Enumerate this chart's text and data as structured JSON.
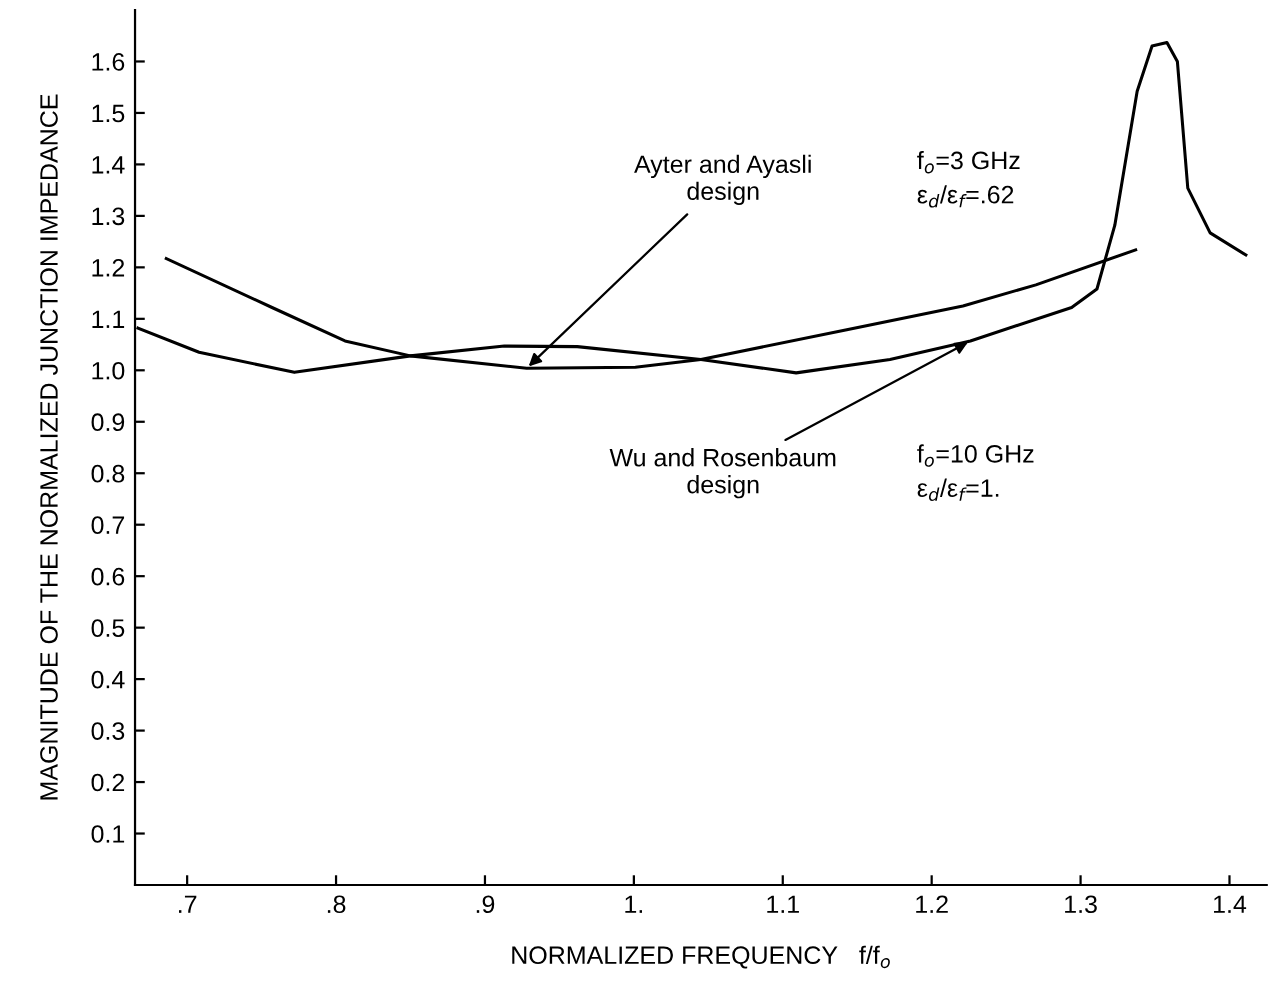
{
  "chart_data": {
    "type": "line",
    "xlabel": "NORMALIZED FREQUENCY   f/f$_{o}$",
    "ylabel": "MAGNITUDE OF THE NORMALIZED JUNCTION IMPEDANCE",
    "xlim": [
      0.665,
      1.425
    ],
    "ylim": [
      0,
      1.7
    ],
    "xticks": [
      {
        "value": 0.7,
        "label": ".7"
      },
      {
        "value": 0.8,
        "label": ".8"
      },
      {
        "value": 0.9,
        "label": ".9"
      },
      {
        "value": 1.0,
        "label": "1."
      },
      {
        "value": 1.1,
        "label": "1.1"
      },
      {
        "value": 1.2,
        "label": "1.2"
      },
      {
        "value": 1.3,
        "label": "1.3"
      },
      {
        "value": 1.4,
        "label": "1.4"
      }
    ],
    "yticks": [
      {
        "value": 0.1,
        "label": "0.1"
      },
      {
        "value": 0.2,
        "label": "0.2"
      },
      {
        "value": 0.3,
        "label": "0.3"
      },
      {
        "value": 0.4,
        "label": "0.4"
      },
      {
        "value": 0.5,
        "label": "0.5"
      },
      {
        "value": 0.6,
        "label": "0.6"
      },
      {
        "value": 0.7,
        "label": "0.7"
      },
      {
        "value": 0.8,
        "label": "0.8"
      },
      {
        "value": 0.9,
        "label": "0.9"
      },
      {
        "value": 1.0,
        "label": "1.0"
      },
      {
        "value": 1.1,
        "label": "1.1"
      },
      {
        "value": 1.2,
        "label": "1.2"
      },
      {
        "value": 1.3,
        "label": "1.3"
      },
      {
        "value": 1.4,
        "label": "1.4"
      },
      {
        "value": 1.5,
        "label": "1.5"
      },
      {
        "value": 1.6,
        "label": "1.6"
      }
    ],
    "grid": false,
    "legend": false,
    "marker": "none",
    "line_style": "solid",
    "series": [
      {
        "name": "Ayter and Ayasli\ndesign",
        "color": "#000000",
        "x": [
          0.686,
          0.757,
          0.806,
          0.85,
          0.928,
          1.001,
          1.045,
          1.143,
          1.221,
          1.27,
          1.337
        ],
        "values": [
          1.217,
          1.122,
          1.057,
          1.028,
          1.004,
          1.006,
          1.021,
          1.079,
          1.125,
          1.166,
          1.234
        ]
      },
      {
        "name": "Wu and Rosenbaum\ndesign",
        "color": "#000000",
        "x": [
          0.667,
          0.708,
          0.772,
          0.85,
          0.913,
          0.962,
          1.045,
          1.109,
          1.172,
          1.226,
          1.294,
          1.311,
          1.323,
          1.338,
          1.348,
          1.358,
          1.365,
          1.372,
          1.387,
          1.411
        ],
        "values": [
          1.082,
          1.035,
          0.996,
          1.028,
          1.047,
          1.046,
          1.021,
          0.995,
          1.021,
          1.057,
          1.122,
          1.158,
          1.282,
          1.542,
          1.63,
          1.637,
          1.6,
          1.354,
          1.267,
          1.224
        ]
      }
    ],
    "annotations": [
      "f$_{o}$=3 GHz\nε$_{d}$/ε$_{f}$=.62",
      "f$_{o}$=10 GHz\nε$_{d}$/ε$_{f}$=1."
    ]
  }
}
